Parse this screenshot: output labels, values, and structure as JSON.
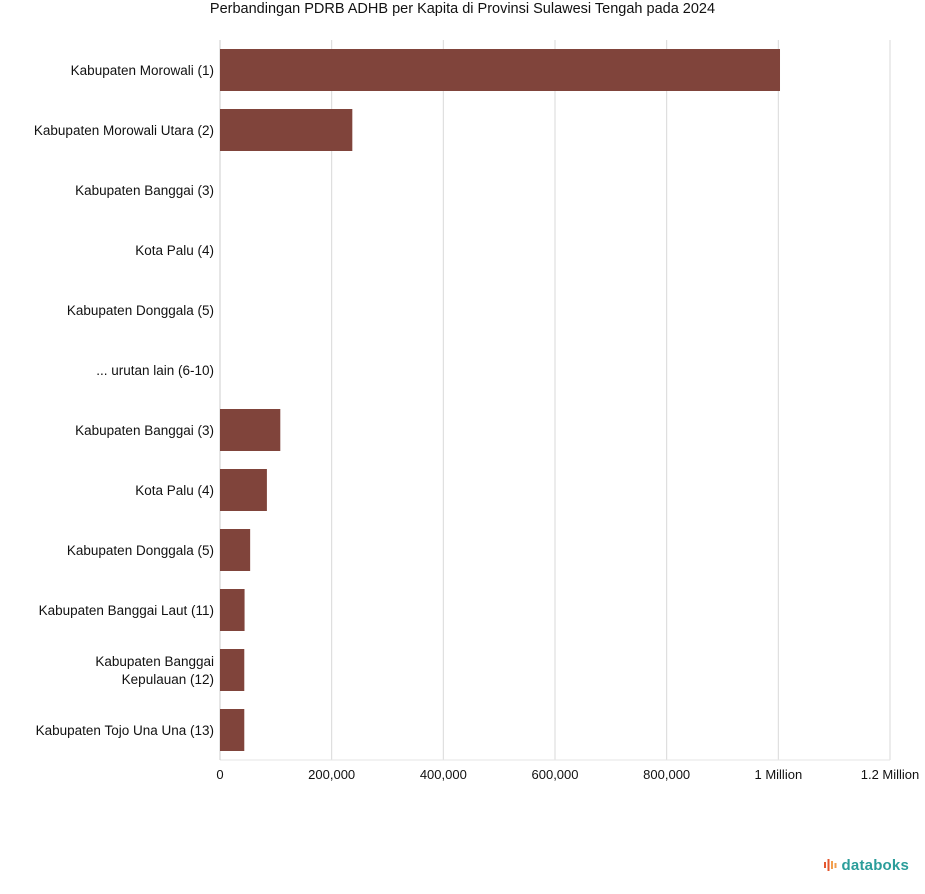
{
  "chart_data": {
    "type": "bar",
    "orientation": "horizontal",
    "title": "Perbandingan PDRB ADHB per Kapita di Provinsi Sulawesi Tengah pada 2024",
    "xlabel": "",
    "ylabel": "",
    "xlim": [
      0,
      1200000
    ],
    "grid": true,
    "bar_color": "#80443b",
    "categories": [
      [
        "Kabupaten Morowali (1)"
      ],
      [
        "Kabupaten Morowali Utara (2)"
      ],
      [
        "Kabupaten Banggai (3)"
      ],
      [
        "Kota Palu (4)"
      ],
      [
        "Kabupaten Donggala (5)"
      ],
      [
        "... urutan lain (6-10)"
      ],
      [
        "Kabupaten Banggai (3)"
      ],
      [
        "Kota Palu (4)"
      ],
      [
        "Kabupaten Donggala (5)"
      ],
      [
        "Kabupaten Banggai Laut (11)"
      ],
      [
        "Kabupaten Banggai",
        "Kepulauan (12)"
      ],
      [
        "Kabupaten Tojo Una Una (13)"
      ]
    ],
    "values": [
      1003000,
      237000,
      null,
      null,
      null,
      null,
      108000,
      84000,
      54000,
      44000,
      43500,
      43500
    ],
    "ticks": [
      {
        "value": 0,
        "label": "0"
      },
      {
        "value": 200000,
        "label": "200,000"
      },
      {
        "value": 400000,
        "label": "400,000"
      },
      {
        "value": 600000,
        "label": "600,000"
      },
      {
        "value": 800000,
        "label": "800,000"
      },
      {
        "value": 1000000,
        "label": "1 Million"
      },
      {
        "value": 1200000,
        "label": "1.2 Million"
      }
    ]
  },
  "brand": {
    "name": "databoks",
    "icon": "databoks-logo-icon",
    "color": "#2a9d9a"
  }
}
